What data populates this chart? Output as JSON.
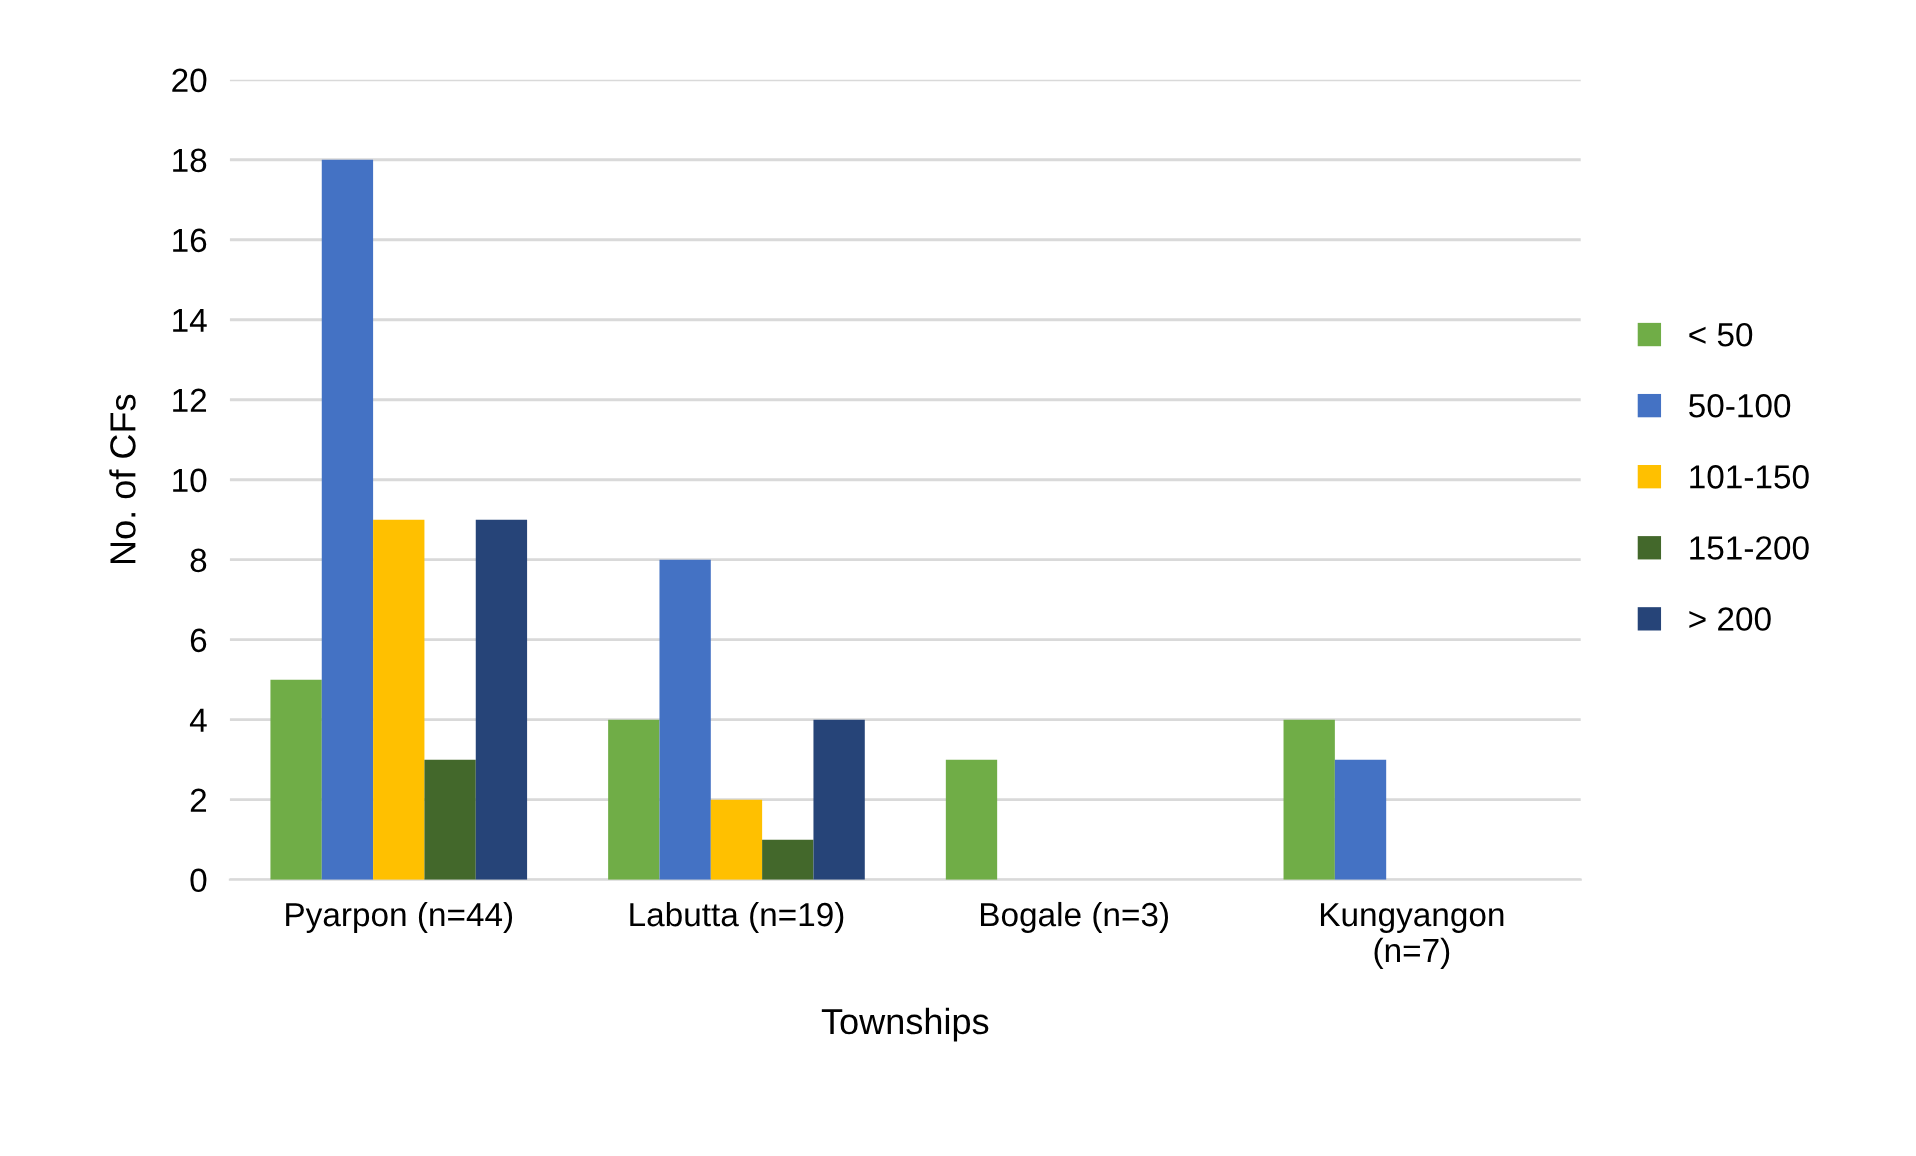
{
  "chart_data": {
    "type": "bar",
    "xlabel": "Townships",
    "ylabel": "No. of CFs",
    "categories": [
      "Pyarpon (n=44)",
      "Labutta (n=19)",
      "Bogale (n=3)",
      "Kungyangon\n(n=7)"
    ],
    "series": [
      {
        "name": "< 50",
        "color": "#70ad47",
        "values": [
          5,
          4,
          3,
          4
        ]
      },
      {
        "name": "50-100",
        "color": "#4472c4",
        "values": [
          18,
          8,
          null,
          3
        ]
      },
      {
        "name": "101-150",
        "color": "#ffc000",
        "values": [
          9,
          2,
          null,
          null
        ]
      },
      {
        "name": "151-200",
        "color": "#43682b",
        "values": [
          3,
          1,
          null,
          null
        ]
      },
      {
        "name": "> 200",
        "color": "#264478",
        "values": [
          9,
          4,
          null,
          null
        ]
      }
    ],
    "ylim": [
      0,
      20
    ],
    "yticks": [
      0,
      2,
      4,
      6,
      8,
      10,
      12,
      14,
      16,
      18,
      20
    ],
    "grid": "y",
    "legend": "right"
  }
}
